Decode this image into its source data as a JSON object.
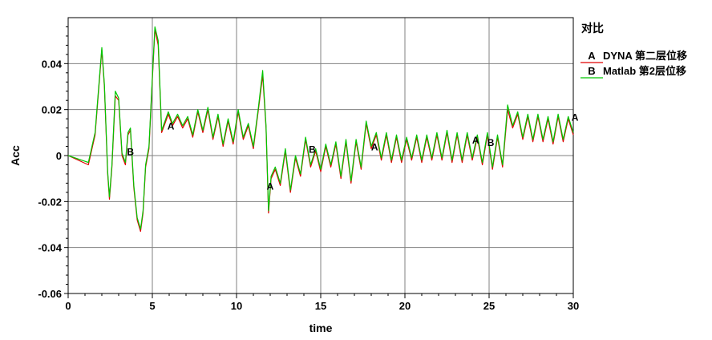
{
  "chart_data": {
    "type": "line",
    "xlabel": "time",
    "ylabel": "Acc",
    "xlim": [
      0,
      30
    ],
    "ylim": [
      -0.06,
      0.06
    ],
    "x_ticks": [
      0,
      5,
      10,
      15,
      20,
      25,
      30
    ],
    "x_tick_labels": [
      "0",
      "5",
      "10",
      "15",
      "20",
      "25",
      "30"
    ],
    "y_ticks": [
      -0.06,
      -0.04,
      -0.02,
      0,
      0.02,
      0.04
    ],
    "y_tick_labels": [
      "-0.06",
      "-0.04",
      "-0.02",
      "0",
      "0.02",
      "0.04"
    ],
    "grid": true,
    "legend_title": "对比",
    "legend_position": "right",
    "series": [
      {
        "marker": "A",
        "name": "DYNA 第二层位移",
        "color": "#e00000",
        "x": [
          0,
          1.2,
          1.6,
          2.0,
          2.15,
          2.35,
          2.45,
          2.6,
          2.8,
          3.0,
          3.2,
          3.4,
          3.55,
          3.7,
          3.9,
          4.1,
          4.3,
          4.45,
          4.6,
          4.8,
          5.0,
          5.15,
          5.35,
          5.55,
          5.75,
          5.95,
          6.2,
          6.5,
          6.8,
          7.1,
          7.4,
          7.7,
          8.0,
          8.3,
          8.6,
          8.9,
          9.2,
          9.5,
          9.8,
          10.1,
          10.4,
          10.7,
          11.0,
          11.3,
          11.55,
          11.75,
          11.9,
          12.05,
          12.3,
          12.6,
          12.9,
          13.2,
          13.5,
          13.8,
          14.1,
          14.4,
          14.7,
          15.0,
          15.3,
          15.6,
          15.9,
          16.2,
          16.5,
          16.8,
          17.1,
          17.4,
          17.7,
          18.0,
          18.3,
          18.6,
          18.9,
          19.2,
          19.5,
          19.8,
          20.1,
          20.4,
          20.7,
          21.0,
          21.3,
          21.6,
          21.9,
          22.2,
          22.5,
          22.8,
          23.1,
          23.4,
          23.7,
          24.0,
          24.3,
          24.6,
          24.9,
          25.2,
          25.5,
          25.8,
          26.1,
          26.4,
          26.7,
          27.0,
          27.3,
          27.6,
          27.9,
          28.2,
          28.5,
          28.8,
          29.1,
          29.4,
          29.7,
          30.0
        ],
        "y": [
          0.0,
          -0.004,
          0.009,
          0.046,
          0.03,
          -0.008,
          -0.019,
          -0.005,
          0.026,
          0.024,
          0.0,
          -0.004,
          0.009,
          0.011,
          -0.014,
          -0.028,
          -0.033,
          -0.025,
          -0.005,
          0.003,
          0.033,
          0.055,
          0.048,
          0.01,
          0.014,
          0.018,
          0.013,
          0.017,
          0.012,
          0.016,
          0.008,
          0.019,
          0.01,
          0.02,
          0.007,
          0.017,
          0.004,
          0.015,
          0.005,
          0.019,
          0.007,
          0.013,
          0.003,
          0.02,
          0.035,
          0.012,
          -0.025,
          -0.01,
          -0.006,
          -0.013,
          0.002,
          -0.016,
          -0.001,
          -0.009,
          0.007,
          -0.005,
          0.002,
          -0.007,
          0.004,
          -0.005,
          0.005,
          -0.01,
          0.006,
          -0.012,
          0.006,
          -0.006,
          0.014,
          0.003,
          0.009,
          -0.002,
          0.009,
          -0.003,
          0.008,
          -0.003,
          0.007,
          -0.002,
          0.008,
          -0.003,
          0.008,
          -0.002,
          0.009,
          -0.002,
          0.01,
          -0.003,
          0.009,
          -0.003,
          0.009,
          -0.002,
          0.008,
          -0.004,
          0.009,
          -0.006,
          0.008,
          -0.005,
          0.02,
          0.012,
          0.018,
          0.007,
          0.017,
          0.006,
          0.017,
          0.006,
          0.016,
          0.005,
          0.017,
          0.006,
          0.016,
          0.009
        ]
      },
      {
        "marker": "B",
        "name": "Matlab 第2层位移",
        "color": "#00c800",
        "x": [
          0,
          1.2,
          1.6,
          2.0,
          2.15,
          2.35,
          2.45,
          2.6,
          2.8,
          3.0,
          3.2,
          3.4,
          3.55,
          3.7,
          3.9,
          4.1,
          4.3,
          4.45,
          4.6,
          4.8,
          5.0,
          5.15,
          5.35,
          5.55,
          5.75,
          5.95,
          6.2,
          6.5,
          6.8,
          7.1,
          7.4,
          7.7,
          8.0,
          8.3,
          8.6,
          8.9,
          9.2,
          9.5,
          9.8,
          10.1,
          10.4,
          10.7,
          11.0,
          11.3,
          11.55,
          11.75,
          11.9,
          12.05,
          12.3,
          12.6,
          12.9,
          13.2,
          13.5,
          13.8,
          14.1,
          14.4,
          14.7,
          15.0,
          15.3,
          15.6,
          15.9,
          16.2,
          16.5,
          16.8,
          17.1,
          17.4,
          17.7,
          18.0,
          18.3,
          18.6,
          18.9,
          19.2,
          19.5,
          19.8,
          20.1,
          20.4,
          20.7,
          21.0,
          21.3,
          21.6,
          21.9,
          22.2,
          22.5,
          22.8,
          23.1,
          23.4,
          23.7,
          24.0,
          24.3,
          24.6,
          24.9,
          25.2,
          25.5,
          25.8,
          26.1,
          26.4,
          26.7,
          27.0,
          27.3,
          27.6,
          27.9,
          28.2,
          28.5,
          28.8,
          29.1,
          29.4,
          29.7,
          30.0
        ],
        "y": [
          0.0,
          -0.003,
          0.01,
          0.047,
          0.031,
          -0.007,
          -0.018,
          -0.004,
          0.028,
          0.025,
          0.001,
          -0.003,
          0.01,
          0.012,
          -0.013,
          -0.027,
          -0.032,
          -0.024,
          -0.004,
          0.004,
          0.034,
          0.056,
          0.05,
          0.011,
          0.015,
          0.019,
          0.014,
          0.018,
          0.013,
          0.017,
          0.009,
          0.02,
          0.011,
          0.021,
          0.008,
          0.018,
          0.005,
          0.016,
          0.006,
          0.02,
          0.008,
          0.014,
          0.004,
          0.021,
          0.037,
          0.013,
          -0.024,
          -0.009,
          -0.005,
          -0.012,
          0.003,
          -0.015,
          0.0,
          -0.008,
          0.008,
          -0.004,
          0.003,
          -0.006,
          0.005,
          -0.004,
          0.006,
          -0.009,
          0.007,
          -0.011,
          0.007,
          -0.005,
          0.015,
          0.004,
          0.01,
          -0.001,
          0.01,
          -0.002,
          0.009,
          -0.002,
          0.008,
          -0.001,
          0.009,
          -0.002,
          0.009,
          -0.001,
          0.01,
          -0.001,
          0.011,
          -0.002,
          0.01,
          -0.002,
          0.01,
          -0.001,
          0.009,
          -0.003,
          0.01,
          -0.005,
          0.009,
          -0.004,
          0.022,
          0.013,
          0.019,
          0.008,
          0.018,
          0.007,
          0.018,
          0.007,
          0.017,
          0.006,
          0.018,
          0.007,
          0.017,
          0.01
        ]
      }
    ],
    "markers": [
      {
        "label": "B",
        "x": 3.7,
        "y": 0.002
      },
      {
        "label": "A",
        "x": 6.1,
        "y": 0.013
      },
      {
        "label": "A",
        "x": 12.0,
        "y": -0.013
      },
      {
        "label": "B",
        "x": 14.5,
        "y": 0.003
      },
      {
        "label": "A",
        "x": 18.2,
        "y": 0.004
      },
      {
        "label": "A",
        "x": 24.2,
        "y": 0.007
      },
      {
        "label": "B",
        "x": 25.1,
        "y": 0.006
      },
      {
        "label": "A",
        "x": 30.1,
        "y": 0.017
      }
    ]
  }
}
